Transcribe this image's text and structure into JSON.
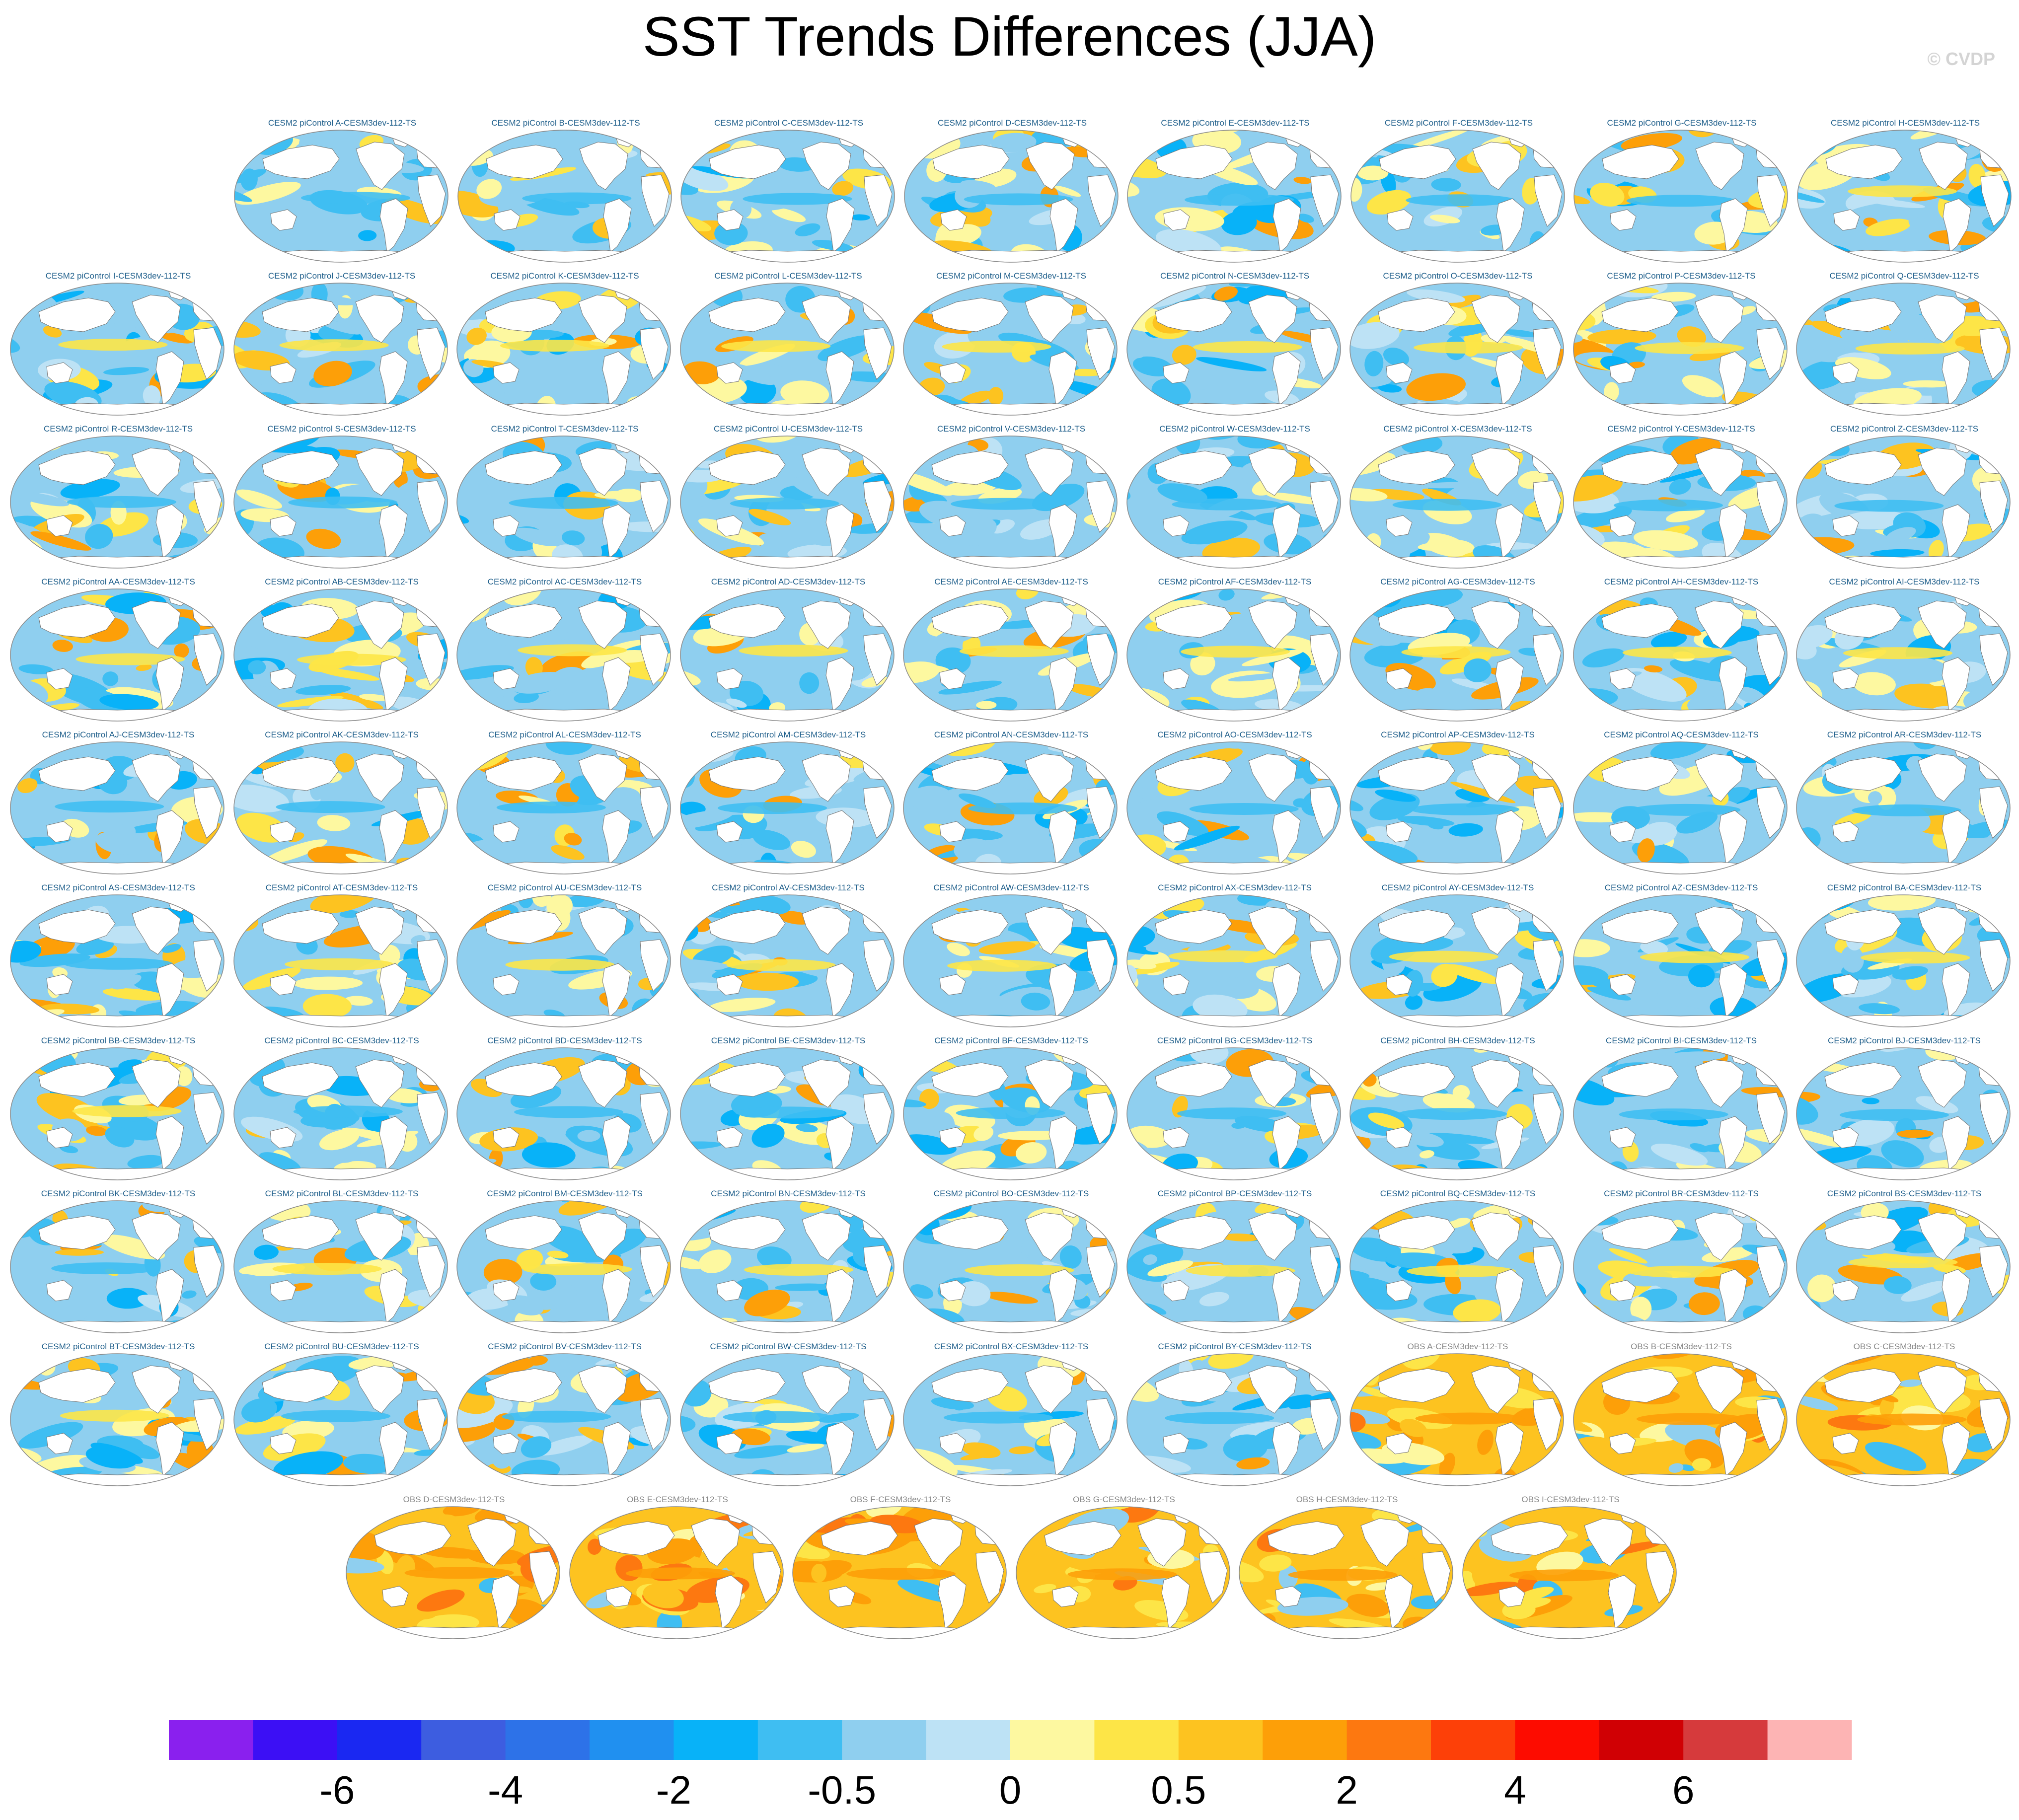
{
  "title": "SST Trends Differences (JJA)",
  "credit": "© CVDP",
  "chart_data": {
    "type": "heatmap",
    "title": "SST Trends Differences (JJA)",
    "projection": "Robinson (global, Pacific-centred)",
    "panels": [
      {
        "label": "CESM2 piControl A-CESM3dev-112-TS",
        "kind": "model"
      },
      {
        "label": "CESM2 piControl B-CESM3dev-112-TS",
        "kind": "model"
      },
      {
        "label": "CESM2 piControl C-CESM3dev-112-TS",
        "kind": "model"
      },
      {
        "label": "CESM2 piControl D-CESM3dev-112-TS",
        "kind": "model"
      },
      {
        "label": "CESM2 piControl E-CESM3dev-112-TS",
        "kind": "model"
      },
      {
        "label": "CESM2 piControl F-CESM3dev-112-TS",
        "kind": "model"
      },
      {
        "label": "CESM2 piControl G-CESM3dev-112-TS",
        "kind": "model"
      },
      {
        "label": "CESM2 piControl H-CESM3dev-112-TS",
        "kind": "model"
      },
      {
        "label": "CESM2 piControl I-CESM3dev-112-TS",
        "kind": "model"
      },
      {
        "label": "CESM2 piControl J-CESM3dev-112-TS",
        "kind": "model"
      },
      {
        "label": "CESM2 piControl K-CESM3dev-112-TS",
        "kind": "model"
      },
      {
        "label": "CESM2 piControl L-CESM3dev-112-TS",
        "kind": "model"
      },
      {
        "label": "CESM2 piControl M-CESM3dev-112-TS",
        "kind": "model"
      },
      {
        "label": "CESM2 piControl N-CESM3dev-112-TS",
        "kind": "model"
      },
      {
        "label": "CESM2 piControl O-CESM3dev-112-TS",
        "kind": "model"
      },
      {
        "label": "CESM2 piControl P-CESM3dev-112-TS",
        "kind": "model"
      },
      {
        "label": "CESM2 piControl Q-CESM3dev-112-TS",
        "kind": "model"
      },
      {
        "label": "CESM2 piControl R-CESM3dev-112-TS",
        "kind": "model"
      },
      {
        "label": "CESM2 piControl S-CESM3dev-112-TS",
        "kind": "model"
      },
      {
        "label": "CESM2 piControl T-CESM3dev-112-TS",
        "kind": "model"
      },
      {
        "label": "CESM2 piControl U-CESM3dev-112-TS",
        "kind": "model"
      },
      {
        "label": "CESM2 piControl V-CESM3dev-112-TS",
        "kind": "model"
      },
      {
        "label": "CESM2 piControl W-CESM3dev-112-TS",
        "kind": "model"
      },
      {
        "label": "CESM2 piControl X-CESM3dev-112-TS",
        "kind": "model"
      },
      {
        "label": "CESM2 piControl Y-CESM3dev-112-TS",
        "kind": "model"
      },
      {
        "label": "CESM2 piControl Z-CESM3dev-112-TS",
        "kind": "model"
      },
      {
        "label": "CESM2 piControl AA-CESM3dev-112-TS",
        "kind": "model"
      },
      {
        "label": "CESM2 piControl AB-CESM3dev-112-TS",
        "kind": "model"
      },
      {
        "label": "CESM2 piControl AC-CESM3dev-112-TS",
        "kind": "model"
      },
      {
        "label": "CESM2 piControl AD-CESM3dev-112-TS",
        "kind": "model"
      },
      {
        "label": "CESM2 piControl AE-CESM3dev-112-TS",
        "kind": "model"
      },
      {
        "label": "CESM2 piControl AF-CESM3dev-112-TS",
        "kind": "model"
      },
      {
        "label": "CESM2 piControl AG-CESM3dev-112-TS",
        "kind": "model"
      },
      {
        "label": "CESM2 piControl AH-CESM3dev-112-TS",
        "kind": "model"
      },
      {
        "label": "CESM2 piControl AI-CESM3dev-112-TS",
        "kind": "model"
      },
      {
        "label": "CESM2 piControl AJ-CESM3dev-112-TS",
        "kind": "model"
      },
      {
        "label": "CESM2 piControl AK-CESM3dev-112-TS",
        "kind": "model"
      },
      {
        "label": "CESM2 piControl AL-CESM3dev-112-TS",
        "kind": "model"
      },
      {
        "label": "CESM2 piControl AM-CESM3dev-112-TS",
        "kind": "model"
      },
      {
        "label": "CESM2 piControl AN-CESM3dev-112-TS",
        "kind": "model"
      },
      {
        "label": "CESM2 piControl AO-CESM3dev-112-TS",
        "kind": "model"
      },
      {
        "label": "CESM2 piControl AP-CESM3dev-112-TS",
        "kind": "model"
      },
      {
        "label": "CESM2 piControl AQ-CESM3dev-112-TS",
        "kind": "model"
      },
      {
        "label": "CESM2 piControl AR-CESM3dev-112-TS",
        "kind": "model"
      },
      {
        "label": "CESM2 piControl AS-CESM3dev-112-TS",
        "kind": "model"
      },
      {
        "label": "CESM2 piControl AT-CESM3dev-112-TS",
        "kind": "model"
      },
      {
        "label": "CESM2 piControl AU-CESM3dev-112-TS",
        "kind": "model"
      },
      {
        "label": "CESM2 piControl AV-CESM3dev-112-TS",
        "kind": "model"
      },
      {
        "label": "CESM2 piControl AW-CESM3dev-112-TS",
        "kind": "model"
      },
      {
        "label": "CESM2 piControl AX-CESM3dev-112-TS",
        "kind": "model"
      },
      {
        "label": "CESM2 piControl AY-CESM3dev-112-TS",
        "kind": "model"
      },
      {
        "label": "CESM2 piControl AZ-CESM3dev-112-TS",
        "kind": "model"
      },
      {
        "label": "CESM2 piControl BA-CESM3dev-112-TS",
        "kind": "model"
      },
      {
        "label": "CESM2 piControl BB-CESM3dev-112-TS",
        "kind": "model"
      },
      {
        "label": "CESM2 piControl BC-CESM3dev-112-TS",
        "kind": "model"
      },
      {
        "label": "CESM2 piControl BD-CESM3dev-112-TS",
        "kind": "model"
      },
      {
        "label": "CESM2 piControl BE-CESM3dev-112-TS",
        "kind": "model"
      },
      {
        "label": "CESM2 piControl BF-CESM3dev-112-TS",
        "kind": "model"
      },
      {
        "label": "CESM2 piControl BG-CESM3dev-112-TS",
        "kind": "model"
      },
      {
        "label": "CESM2 piControl BH-CESM3dev-112-TS",
        "kind": "model"
      },
      {
        "label": "CESM2 piControl BI-CESM3dev-112-TS",
        "kind": "model"
      },
      {
        "label": "CESM2 piControl BJ-CESM3dev-112-TS",
        "kind": "model"
      },
      {
        "label": "CESM2 piControl BK-CESM3dev-112-TS",
        "kind": "model"
      },
      {
        "label": "CESM2 piControl BL-CESM3dev-112-TS",
        "kind": "model"
      },
      {
        "label": "CESM2 piControl BM-CESM3dev-112-TS",
        "kind": "model"
      },
      {
        "label": "CESM2 piControl BN-CESM3dev-112-TS",
        "kind": "model"
      },
      {
        "label": "CESM2 piControl BO-CESM3dev-112-TS",
        "kind": "model"
      },
      {
        "label": "CESM2 piControl BP-CESM3dev-112-TS",
        "kind": "model"
      },
      {
        "label": "CESM2 piControl BQ-CESM3dev-112-TS",
        "kind": "model"
      },
      {
        "label": "CESM2 piControl BR-CESM3dev-112-TS",
        "kind": "model"
      },
      {
        "label": "CESM2 piControl BS-CESM3dev-112-TS",
        "kind": "model"
      },
      {
        "label": "CESM2 piControl BT-CESM3dev-112-TS",
        "kind": "model"
      },
      {
        "label": "CESM2 piControl BU-CESM3dev-112-TS",
        "kind": "model"
      },
      {
        "label": "CESM2 piControl BV-CESM3dev-112-TS",
        "kind": "model"
      },
      {
        "label": "CESM2 piControl BW-CESM3dev-112-TS",
        "kind": "model"
      },
      {
        "label": "CESM2 piControl BX-CESM3dev-112-TS",
        "kind": "model"
      },
      {
        "label": "CESM2 piControl BY-CESM3dev-112-TS",
        "kind": "model"
      },
      {
        "label": "OBS A-CESM3dev-112-TS",
        "kind": "obs"
      },
      {
        "label": "OBS B-CESM3dev-112-TS",
        "kind": "obs"
      },
      {
        "label": "OBS C-CESM3dev-112-TS",
        "kind": "obs"
      },
      {
        "label": "OBS D-CESM3dev-112-TS",
        "kind": "obs"
      },
      {
        "label": "OBS E-CESM3dev-112-TS",
        "kind": "obs"
      },
      {
        "label": "OBS F-CESM3dev-112-TS",
        "kind": "obs"
      },
      {
        "label": "OBS G-CESM3dev-112-TS",
        "kind": "obs"
      },
      {
        "label": "OBS H-CESM3dev-112-TS",
        "kind": "obs"
      },
      {
        "label": "OBS I-CESM3dev-112-TS",
        "kind": "obs"
      }
    ],
    "colorbar": {
      "colors": [
        "#8a20ee",
        "#3c0ff5",
        "#1a28f2",
        "#3d5de0",
        "#2d72e8",
        "#2090f0",
        "#08b2f8",
        "#3fbef2",
        "#8fcfef",
        "#bde2f5",
        "#fdf8a0",
        "#fde547",
        "#fdc320",
        "#fd9f08",
        "#fd7810",
        "#fd4008",
        "#fd0c00",
        "#d00004",
        "#d63a3c",
        "#fdb4b4"
      ],
      "boundaries": [
        -8,
        -7,
        -6,
        -5,
        -4,
        -3,
        -2,
        -1,
        -0.5,
        -0.25,
        0,
        0.25,
        0.5,
        1,
        2,
        3,
        4,
        5,
        6,
        7,
        8
      ],
      "tick_values": [
        -6,
        -4,
        -2,
        -0.5,
        0,
        0.5,
        2,
        4,
        6
      ],
      "tick_labels": [
        "-6",
        "-4",
        "-2",
        "-0.5",
        "0",
        "0.5",
        "2",
        "4",
        "6"
      ]
    }
  }
}
